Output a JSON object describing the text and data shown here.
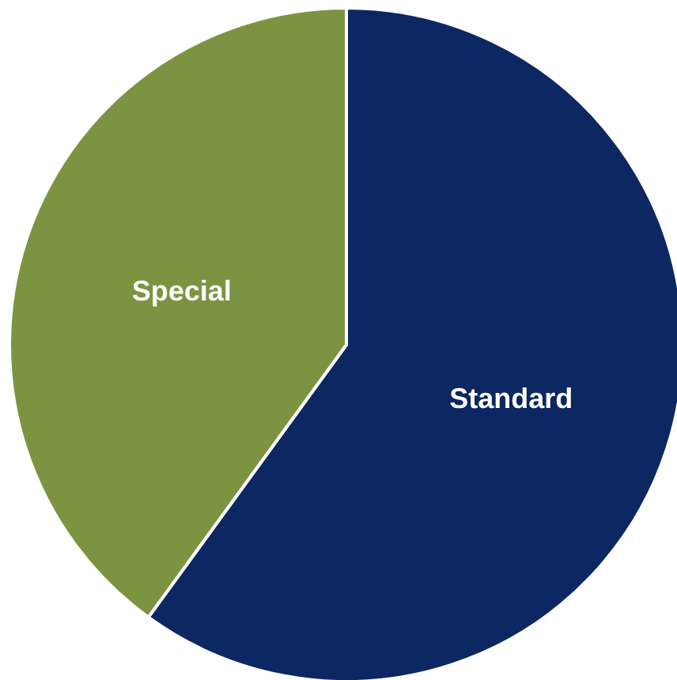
{
  "chart_data": {
    "type": "pie",
    "categories": [
      "Standard",
      "Special"
    ],
    "values": [
      60,
      40
    ],
    "colors": [
      "#0c2761",
      "#7c9441"
    ]
  }
}
